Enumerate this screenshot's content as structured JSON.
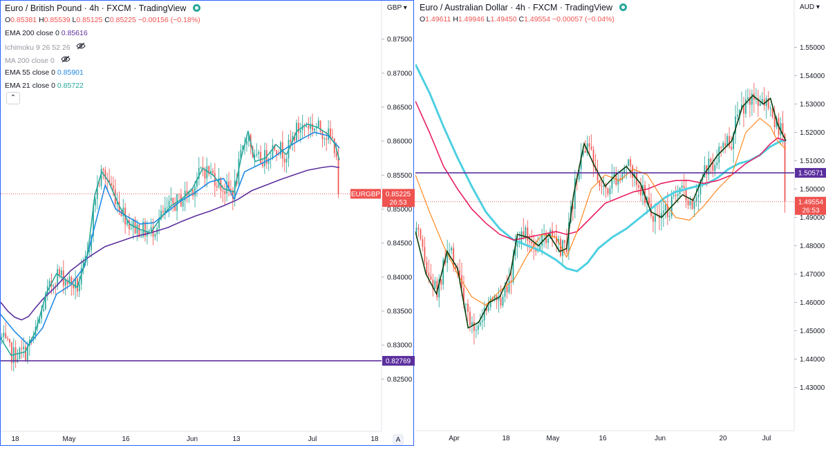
{
  "left": {
    "title": "Euro / British Pound",
    "interval": "4h",
    "exchange": "FXCM",
    "source": "TradingView",
    "ohlc": {
      "o_label": "O",
      "o": "0.85381",
      "h_label": "H",
      "h": "0.85539",
      "l_label": "L",
      "l": "0.85125",
      "c_label": "C",
      "c": "0.85225",
      "chg": "−0.00156 (−0.18%)"
    },
    "indicators": [
      {
        "label": "EMA 200 close 0",
        "value": "0.85616",
        "color": "#5b2f9e"
      },
      {
        "label": "Ichimoku 9 26 52 26",
        "value": "",
        "color": "",
        "hidden": true
      },
      {
        "label": "MA 200 close 0",
        "value": "",
        "color": "",
        "hidden": true
      },
      {
        "label": "EMA 55 close 0",
        "value": "0.85901",
        "color": "#1e88e5"
      },
      {
        "label": "EMA 21 close 0",
        "value": "0.85722",
        "color": "#26a69a"
      }
    ],
    "collapse_icon": "chevron-up-icon",
    "currency": "GBP",
    "symbol_tag": "EURGBP",
    "price_tag": "0.85225",
    "countdown": "26:53",
    "hline_tag": "0.82769",
    "price_ticks": [
      "0.87500",
      "0.87000",
      "0.86500",
      "0.86000",
      "0.85500",
      "0.85000",
      "0.84500",
      "0.84000",
      "0.83500",
      "0.83000",
      "0.82500"
    ],
    "time_ticks": [
      "18",
      "May",
      "16",
      "Jun",
      "13",
      "Jul",
      "18"
    ],
    "auto_label": "A"
  },
  "right": {
    "title": "Euro / Australian Dollar",
    "interval": "4h",
    "exchange": "FXCM",
    "source": "TradingView",
    "ohlc": {
      "o_label": "O",
      "o": "1.49611",
      "h_label": "H",
      "h": "1.49946",
      "l_label": "L",
      "l": "1.49450",
      "c_label": "C",
      "c": "1.49554",
      "chg": "−0.00057 (−0.04%)"
    },
    "currency": "AUD",
    "price_tag": "1.49554",
    "countdown": "26:53",
    "hline_tag": "1.50571",
    "price_ticks": [
      "1.55000",
      "1.54000",
      "1.53000",
      "1.52000",
      "1.51000",
      "1.50000",
      "1.49000",
      "1.48000",
      "1.47000",
      "1.46000",
      "1.45000",
      "1.44000",
      "1.43000"
    ],
    "time_ticks": [
      "Apr",
      "18",
      "May",
      "16",
      "Jun",
      "20",
      "Jul"
    ]
  },
  "colors": {
    "up": "#26a69a",
    "down": "#ef5350",
    "hline": "#5b2f9e",
    "tag_red": "#ef5350",
    "tag_purple": "#5b2f9e"
  },
  "chart_data": [
    {
      "type": "candlestick",
      "title": "Euro / British Pound · 4h · FXCM",
      "ylim": [
        0.8225,
        0.8775
      ],
      "x_ticks": [
        "18",
        "May",
        "16",
        "Jun",
        "13",
        "Jul",
        "18"
      ],
      "series": [
        {
          "name": "EMA 200 close 0",
          "color": "#5b2f9e",
          "values": [
            [
              0,
              0.8363
            ],
            [
              10,
              0.835
            ],
            [
              20,
              0.8341
            ],
            [
              30,
              0.8337
            ],
            [
              40,
              0.8342
            ],
            [
              50,
              0.8355
            ],
            [
              60,
              0.8367
            ],
            [
              70,
              0.8377
            ],
            [
              80,
              0.8387
            ],
            [
              90,
              0.8398
            ],
            [
              100,
              0.8409
            ],
            [
              115,
              0.8421
            ],
            [
              130,
              0.8432
            ],
            [
              150,
              0.8445
            ],
            [
              170,
              0.8452
            ],
            [
              190,
              0.8459
            ],
            [
              215,
              0.8465
            ],
            [
              240,
              0.8473
            ],
            [
              260,
              0.8482
            ],
            [
              280,
              0.849
            ],
            [
              300,
              0.8497
            ],
            [
              320,
              0.8505
            ],
            [
              340,
              0.8514
            ],
            [
              360,
              0.8527
            ],
            [
              380,
              0.8535
            ],
            [
              400,
              0.8543
            ],
            [
              420,
              0.855
            ],
            [
              440,
              0.8557
            ],
            [
              460,
              0.8561
            ],
            [
              475,
              0.8563
            ],
            [
              486,
              0.8561
            ]
          ]
        },
        {
          "name": "EMA 55 close 0",
          "color": "#1e88e5",
          "values": [
            [
              0,
              0.8345
            ],
            [
              20,
              0.832
            ],
            [
              40,
              0.83
            ],
            [
              60,
              0.8325
            ],
            [
              80,
              0.8375
            ],
            [
              100,
              0.8388
            ],
            [
              120,
              0.8415
            ],
            [
              135,
              0.8475
            ],
            [
              150,
              0.8535
            ],
            [
              165,
              0.85
            ],
            [
              180,
              0.849
            ],
            [
              200,
              0.8478
            ],
            [
              220,
              0.848
            ],
            [
              240,
              0.8497
            ],
            [
              260,
              0.8513
            ],
            [
              280,
              0.8525
            ],
            [
              300,
              0.854
            ],
            [
              320,
              0.8545
            ],
            [
              335,
              0.8515
            ],
            [
              350,
              0.8555
            ],
            [
              370,
              0.8565
            ],
            [
              390,
              0.8575
            ],
            [
              410,
              0.859
            ],
            [
              430,
              0.8602
            ],
            [
              450,
              0.8613
            ],
            [
              470,
              0.8608
            ],
            [
              486,
              0.859
            ]
          ]
        },
        {
          "name": "EMA 21 close 0",
          "color": "#26a69a",
          "values": [
            [
              0,
              0.831
            ],
            [
              15,
              0.8285
            ],
            [
              35,
              0.829
            ],
            [
              50,
              0.832
            ],
            [
              65,
              0.8375
            ],
            [
              80,
              0.8405
            ],
            [
              95,
              0.8395
            ],
            [
              110,
              0.8385
            ],
            [
              125,
              0.8435
            ],
            [
              135,
              0.852
            ],
            [
              145,
              0.8555
            ],
            [
              155,
              0.854
            ],
            [
              170,
              0.8505
            ],
            [
              185,
              0.8478
            ],
            [
              200,
              0.847
            ],
            [
              215,
              0.8465
            ],
            [
              230,
              0.8488
            ],
            [
              245,
              0.8505
            ],
            [
              260,
              0.8515
            ],
            [
              275,
              0.853
            ],
            [
              290,
              0.856
            ],
            [
              305,
              0.855
            ],
            [
              320,
              0.853
            ],
            [
              335,
              0.8525
            ],
            [
              345,
              0.8575
            ],
            [
              355,
              0.8615
            ],
            [
              365,
              0.857
            ],
            [
              380,
              0.8575
            ],
            [
              395,
              0.8595
            ],
            [
              410,
              0.858
            ],
            [
              425,
              0.8615
            ],
            [
              440,
              0.8625
            ],
            [
              455,
              0.862
            ],
            [
              470,
              0.861
            ],
            [
              480,
              0.8595
            ],
            [
              486,
              0.8572
            ]
          ]
        }
      ],
      "hlines": [
        0.82769
      ],
      "last": 0.85225
    },
    {
      "type": "candlestick",
      "title": "Euro / Australian Dollar · 4h · FXCM",
      "ylim": [
        1.425,
        1.555
      ],
      "x_ticks": [
        "Apr",
        "18",
        "May",
        "16",
        "Jun",
        "20",
        "Jul"
      ],
      "series": [
        {
          "name": "EMA long (cyan)",
          "color": "#4dd0e1",
          "values": [
            [
              0,
              1.544
            ],
            [
              20,
              1.534
            ],
            [
              40,
              1.522
            ],
            [
              60,
              1.511
            ],
            [
              80,
              1.501
            ],
            [
              100,
              1.492
            ],
            [
              120,
              1.486
            ],
            [
              140,
              1.482
            ],
            [
              160,
              1.48
            ],
            [
              180,
              1.478
            ],
            [
              200,
              1.475
            ],
            [
              215,
              1.472
            ],
            [
              230,
              1.471
            ],
            [
              245,
              1.474
            ],
            [
              260,
              1.479
            ],
            [
              280,
              1.483
            ],
            [
              300,
              1.486
            ],
            [
              320,
              1.49
            ],
            [
              340,
              1.494
            ],
            [
              355,
              1.497
            ],
            [
              370,
              1.499
            ],
            [
              385,
              1.5
            ],
            [
              400,
              1.501
            ],
            [
              415,
              1.502
            ],
            [
              430,
              1.504
            ],
            [
              445,
              1.507
            ],
            [
              460,
              1.509
            ],
            [
              475,
              1.51
            ],
            [
              490,
              1.512
            ],
            [
              505,
              1.515
            ],
            [
              520,
              1.517
            ],
            [
              527,
              1.517
            ]
          ]
        },
        {
          "name": "EMA (crimson)",
          "color": "#e91e63",
          "values": [
            [
              0,
              1.531
            ],
            [
              20,
              1.52
            ],
            [
              40,
              1.508
            ],
            [
              60,
              1.5
            ],
            [
              80,
              1.493
            ],
            [
              100,
              1.488
            ],
            [
              120,
              1.484
            ],
            [
              140,
              1.482
            ],
            [
              160,
              1.483
            ],
            [
              180,
              1.484
            ],
            [
              200,
              1.485
            ],
            [
              215,
              1.484
            ],
            [
              230,
              1.485
            ],
            [
              250,
              1.49
            ],
            [
              270,
              1.495
            ],
            [
              290,
              1.497
            ],
            [
              310,
              1.499
            ],
            [
              330,
              1.5
            ],
            [
              350,
              1.502
            ],
            [
              370,
              1.503
            ],
            [
              390,
              1.503
            ],
            [
              410,
              1.502
            ],
            [
              430,
              1.503
            ],
            [
              450,
              1.505
            ],
            [
              470,
              1.509
            ],
            [
              490,
              1.512
            ],
            [
              505,
              1.516
            ],
            [
              515,
              1.518
            ],
            [
              527,
              1.517
            ]
          ]
        },
        {
          "name": "EMA (orange)",
          "color": "#ff7f0e",
          "values": [
            [
              0,
              1.505
            ],
            [
              20,
              1.492
            ],
            [
              40,
              1.48
            ],
            [
              60,
              1.47
            ],
            [
              80,
              1.462
            ],
            [
              100,
              1.459
            ],
            [
              120,
              1.464
            ],
            [
              140,
              1.468
            ],
            [
              160,
              1.477
            ],
            [
              180,
              1.484
            ],
            [
              200,
              1.483
            ],
            [
              215,
              1.476
            ],
            [
              230,
              1.485
            ],
            [
              250,
              1.5
            ],
            [
              270,
              1.505
            ],
            [
              290,
              1.503
            ],
            [
              310,
              1.507
            ],
            [
              330,
              1.505
            ],
            [
              350,
              1.497
            ],
            [
              370,
              1.49
            ],
            [
              390,
              1.489
            ],
            [
              410,
              1.494
            ],
            [
              430,
              1.5
            ],
            [
              450,
              1.505
            ],
            [
              470,
              1.52
            ],
            [
              490,
              1.525
            ],
            [
              505,
              1.522
            ],
            [
              515,
              1.517
            ],
            [
              527,
              1.514
            ]
          ]
        },
        {
          "name": "EMA (dark green)",
          "color": "#0b3d0b",
          "values": [
            [
              0,
              1.485
            ],
            [
              15,
              1.47
            ],
            [
              30,
              1.463
            ],
            [
              45,
              1.478
            ],
            [
              60,
              1.472
            ],
            [
              75,
              1.451
            ],
            [
              90,
              1.453
            ],
            [
              105,
              1.46
            ],
            [
              120,
              1.462
            ],
            [
              135,
              1.47
            ],
            [
              145,
              1.484
            ],
            [
              160,
              1.483
            ],
            [
              175,
              1.48
            ],
            [
              190,
              1.484
            ],
            [
              205,
              1.478
            ],
            [
              215,
              1.479
            ],
            [
              225,
              1.498
            ],
            [
              240,
              1.516
            ],
            [
              255,
              1.508
            ],
            [
              270,
              1.501
            ],
            [
              285,
              1.505
            ],
            [
              300,
              1.508
            ],
            [
              310,
              1.505
            ],
            [
              320,
              1.502
            ],
            [
              335,
              1.492
            ],
            [
              350,
              1.49
            ],
            [
              365,
              1.494
            ],
            [
              380,
              1.498
            ],
            [
              395,
              1.496
            ],
            [
              410,
              1.505
            ],
            [
              430,
              1.512
            ],
            [
              450,
              1.517
            ],
            [
              465,
              1.529
            ],
            [
              480,
              1.533
            ],
            [
              495,
              1.53
            ],
            [
              505,
              1.532
            ],
            [
              515,
              1.523
            ],
            [
              527,
              1.517
            ]
          ]
        }
      ],
      "hlines": [
        1.50571
      ],
      "last": 1.49554
    }
  ]
}
